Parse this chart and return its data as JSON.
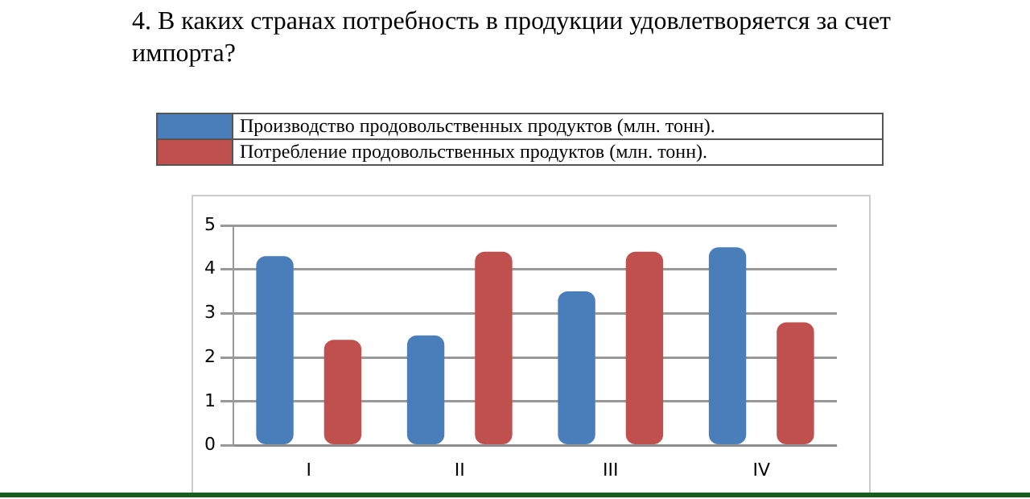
{
  "chart_data": {
    "type": "bar",
    "title": "4. В каких странах потребность в продукции удовлетворяется за счет импорта?",
    "categories": [
      "I",
      "II",
      "III",
      "IV"
    ],
    "series": [
      {
        "name": "Производство продовольственных продуктов (млн. тонн).",
        "color": "#4a7ebb",
        "values": [
          4.3,
          2.5,
          3.5,
          4.5
        ]
      },
      {
        "name": "Потребление продовольственных продуктов (млн. тонн).",
        "color": "#c0504d",
        "values": [
          2.4,
          4.4,
          4.4,
          2.8
        ]
      }
    ],
    "ylim": [
      0,
      5
    ],
    "yticks": [
      0,
      1,
      2,
      3,
      4,
      5
    ],
    "grid": "y",
    "legend": "top"
  }
}
